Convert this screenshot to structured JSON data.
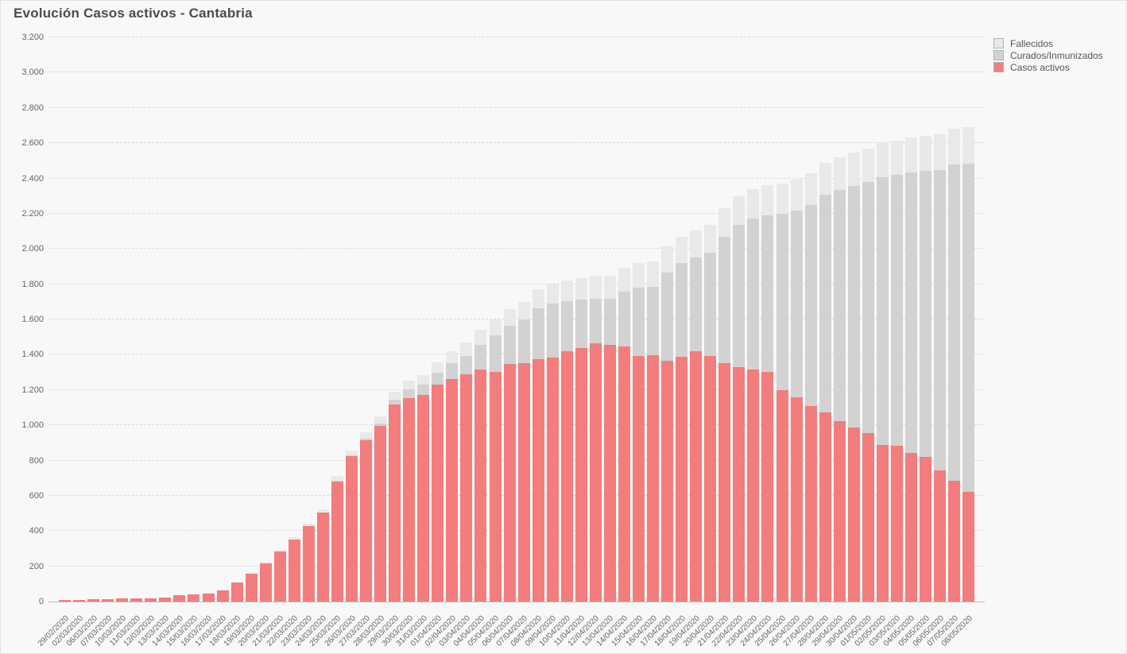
{
  "title": "Evolución Casos activos - Cantabria",
  "legend": [
    {
      "label": "Fallecidos",
      "color": "#e9e9e9"
    },
    {
      "label": "Curados/Inmunizados",
      "color": "#d2d2d2"
    },
    {
      "label": "Casos activos",
      "color": "#f37c7c"
    }
  ],
  "y_axis": {
    "ticks": [
      "0",
      "200",
      "400",
      "600",
      "800",
      "1.000",
      "1.200",
      "1.400",
      "1.600",
      "1.800",
      "2.000",
      "2.200",
      "2.400",
      "2.600",
      "2.800",
      "3.000",
      "3.200"
    ],
    "max": 3200
  },
  "chart_data": {
    "type": "bar",
    "stacked": true,
    "title": "Evolución Casos activos - Cantabria",
    "xlabel": "",
    "ylabel": "",
    "ylim": [
      0,
      3200
    ],
    "grid": "horizontal-dashed",
    "legend_position": "top-right",
    "categories": [
      "29/02/2020",
      "02/03/2020",
      "06/03/2020",
      "07/03/2020",
      "10/03/2020",
      "11/03/2020",
      "12/03/2020",
      "13/03/2020",
      "14/03/2020",
      "15/03/2020",
      "16/03/2020",
      "17/03/2020",
      "18/03/2020",
      "19/03/2020",
      "20/03/2020",
      "21/03/2020",
      "22/03/2020",
      "23/03/2020",
      "24/03/2020",
      "25/03/2020",
      "26/03/2020",
      "27/03/2020",
      "28/03/2020",
      "29/03/2020",
      "30/03/2020",
      "31/03/2020",
      "01/04/2020",
      "02/04/2020",
      "03/04/2020",
      "04/04/2020",
      "05/04/2020",
      "06/04/2020",
      "07/04/2020",
      "08/04/2020",
      "09/04/2020",
      "10/04/2020",
      "11/04/2020",
      "12/04/2020",
      "13/04/2020",
      "14/04/2020",
      "15/04/2020",
      "16/04/2020",
      "17/04/2020",
      "18/04/2020",
      "19/04/2020",
      "20/04/2020",
      "21/04/2020",
      "22/04/2020",
      "23/04/2020",
      "24/04/2020",
      "25/04/2020",
      "26/04/2020",
      "27/04/2020",
      "28/04/2020",
      "29/04/2020",
      "30/04/2020",
      "01/05/2020",
      "02/05/2020",
      "03/05/2020",
      "04/05/2020",
      "05/05/2020",
      "06/05/2020",
      "07/05/2020",
      "08/05/2020"
    ],
    "series": [
      {
        "name": "Casos activos",
        "color": "#f37c7c",
        "values": [
          10,
          11,
          14,
          14,
          17,
          17,
          20,
          24,
          38,
          41,
          47,
          65,
          107,
          158,
          217,
          283,
          353,
          428,
          505,
          681,
          823,
          917,
          995,
          1116,
          1155,
          1173,
          1231,
          1261,
          1290,
          1317,
          1302,
          1347,
          1350,
          1374,
          1385,
          1420,
          1437,
          1465,
          1456,
          1446,
          1392,
          1396,
          1366,
          1389,
          1419,
          1392,
          1351,
          1328,
          1316,
          1301,
          1201,
          1158,
          1108,
          1071,
          1025,
          985,
          954,
          888,
          885,
          842,
          819,
          744,
          684,
          620
        ]
      },
      {
        "name": "Curados/Inmunizados",
        "color": "#d2d2d2",
        "values": [
          0,
          0,
          0,
          0,
          0,
          0,
          0,
          0,
          0,
          0,
          0,
          0,
          0,
          0,
          0,
          0,
          0,
          0,
          0,
          3,
          5,
          8,
          15,
          29,
          49,
          56,
          65,
          92,
          104,
          140,
          209,
          218,
          249,
          289,
          303,
          283,
          276,
          254,
          263,
          313,
          387,
          391,
          501,
          529,
          531,
          586,
          719,
          807,
          858,
          891,
          997,
          1058,
          1143,
          1237,
          1310,
          1372,
          1425,
          1519,
          1535,
          1591,
          1622,
          1705,
          1793,
          1863
        ]
      },
      {
        "name": "Fallecidos",
        "color": "#e9e9e9",
        "values": [
          0,
          0,
          0,
          0,
          0,
          0,
          0,
          0,
          0,
          0,
          1,
          1,
          2,
          4,
          7,
          9,
          10,
          12,
          18,
          28,
          30,
          33,
          38,
          43,
          48,
          55,
          62,
          69,
          76,
          83,
          89,
          95,
          101,
          107,
          112,
          117,
          122,
          127,
          131,
          135,
          139,
          143,
          147,
          151,
          155,
          158,
          161,
          164,
          167,
          170,
          173,
          176,
          179,
          182,
          185,
          188,
          191,
          193,
          195,
          197,
          199,
          201,
          203,
          207
        ]
      }
    ]
  }
}
